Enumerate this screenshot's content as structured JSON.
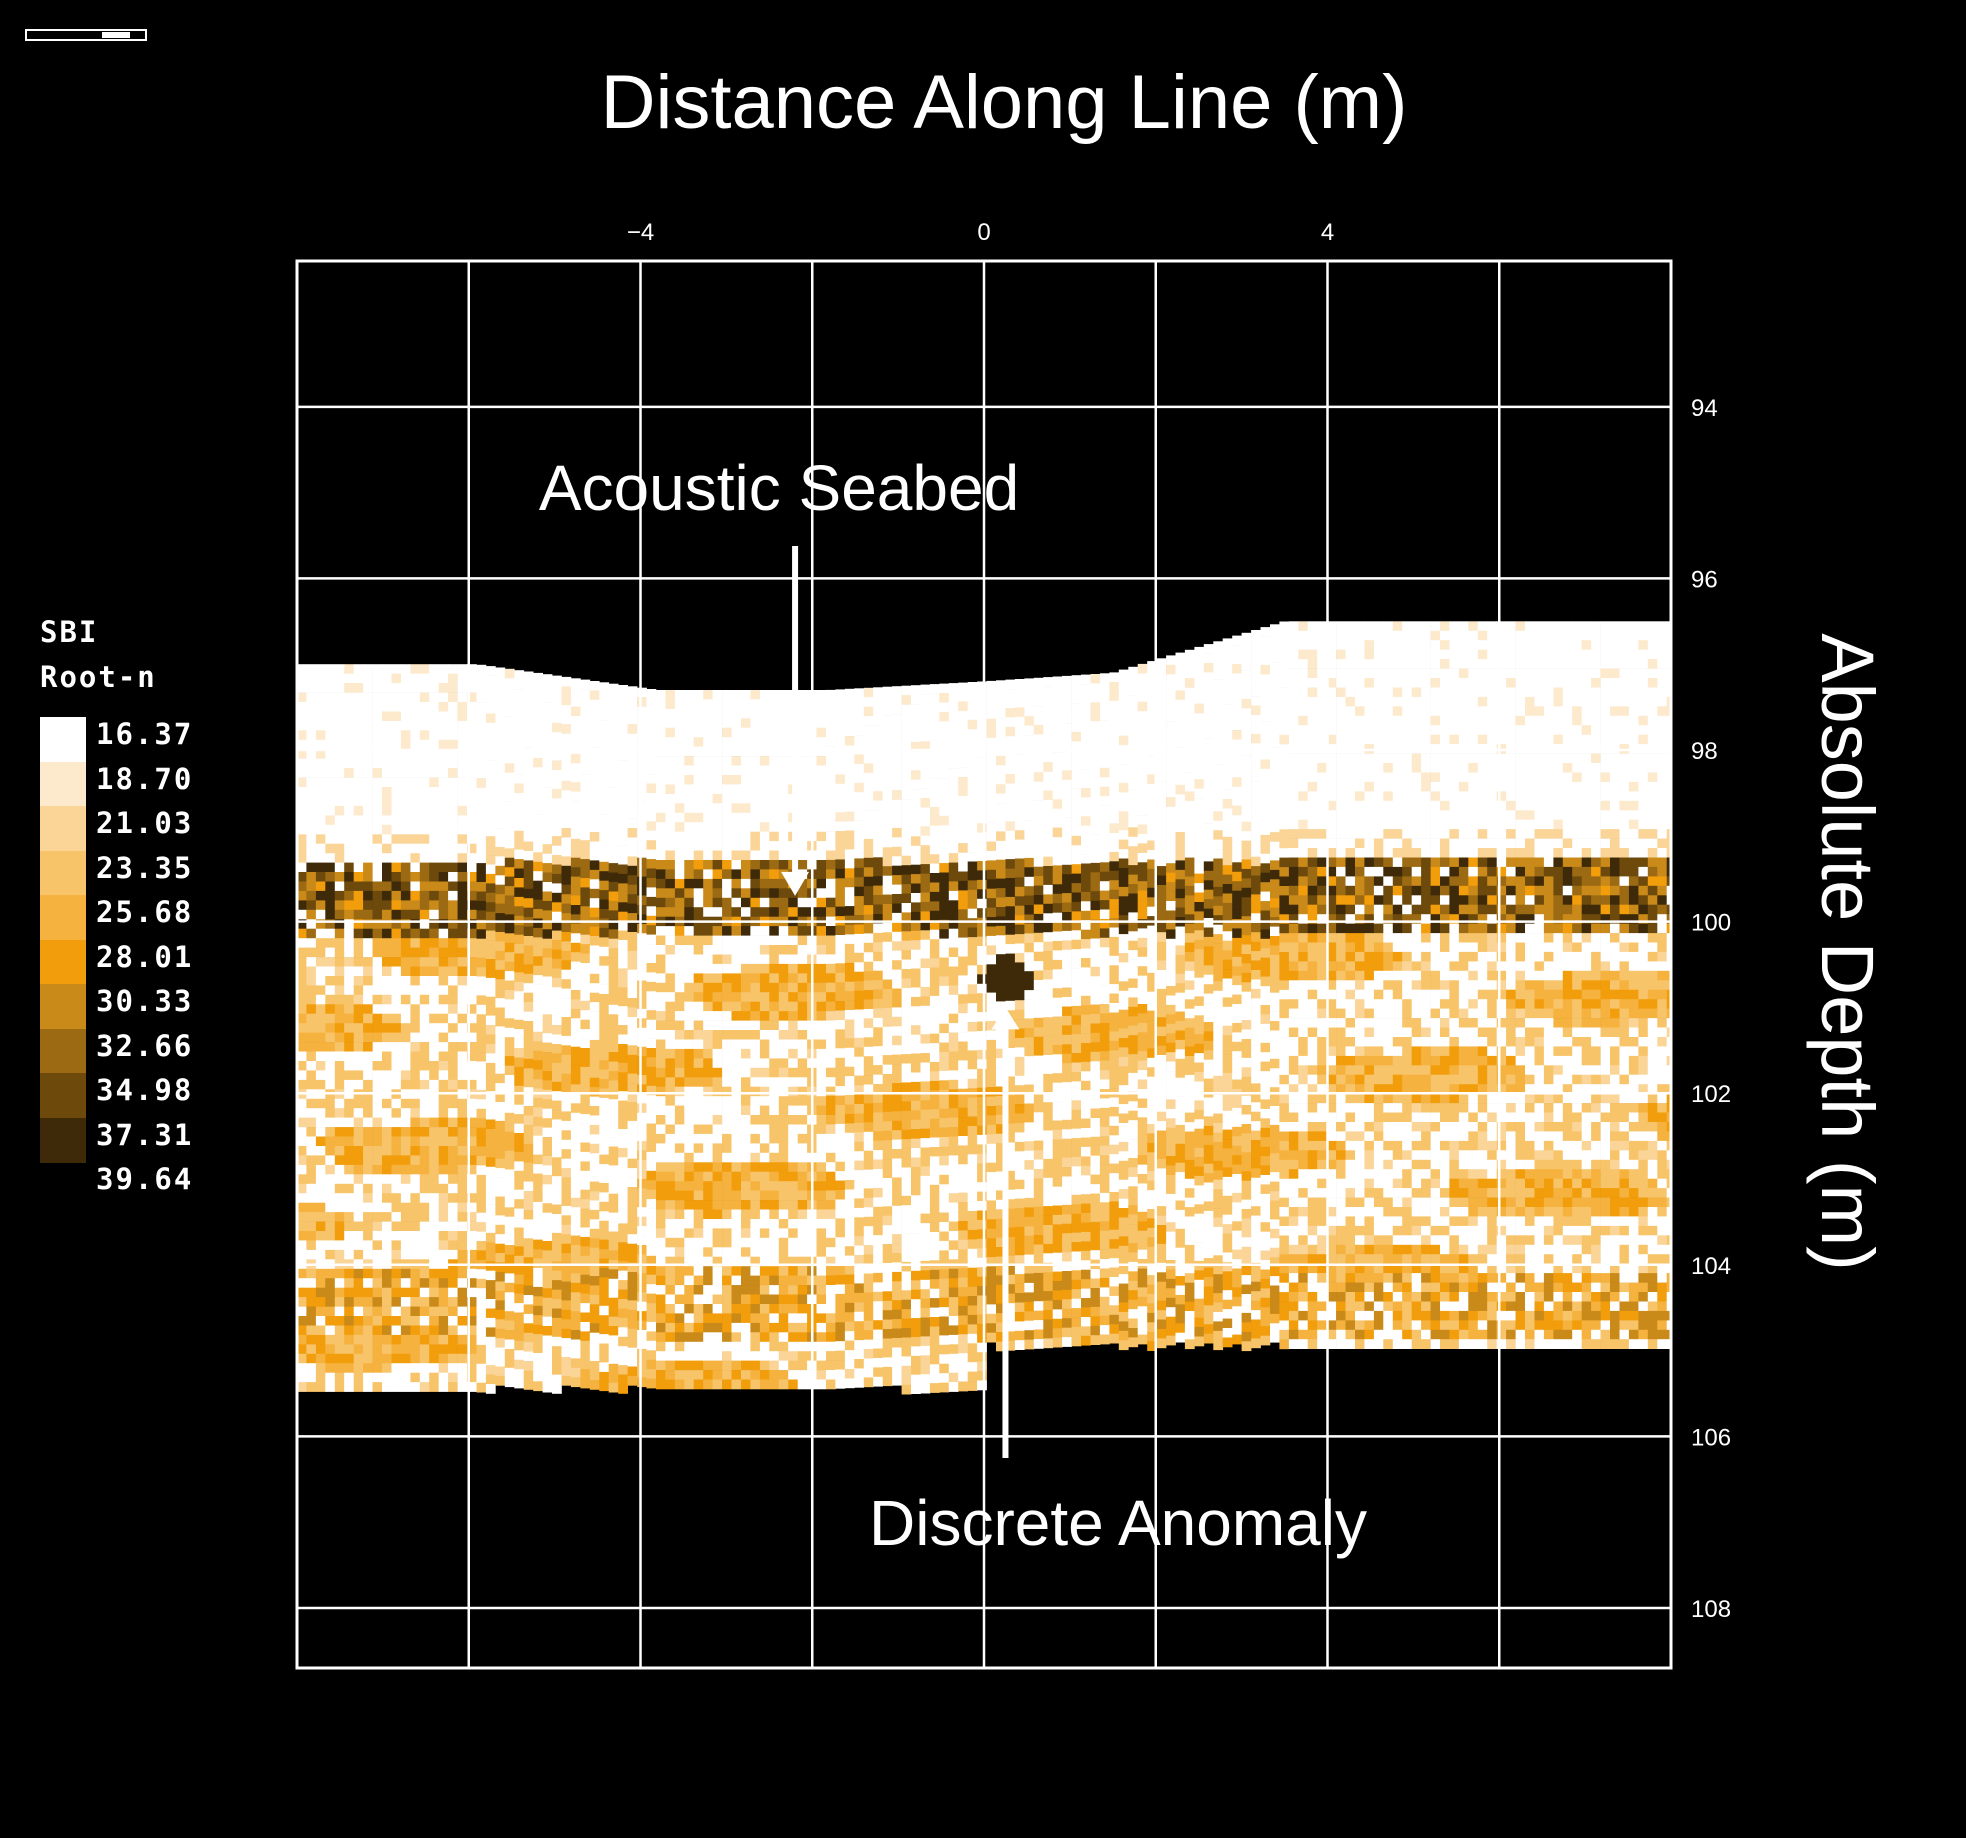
{
  "chart_data": {
    "type": "heatmap",
    "title": "Distance Along Line (m)",
    "xlabel": "Distance Along Line (m)",
    "ylabel": "Absolute Depth (m)",
    "x_ticks": [
      "−4",
      "0",
      "4"
    ],
    "y_ticks": [
      "94",
      "96",
      "98",
      "100",
      "102",
      "104",
      "106",
      "108"
    ],
    "xlim": [
      -8,
      8
    ],
    "ylim": [
      92.3,
      108.7
    ],
    "x_grid": [
      -6,
      -4,
      -2,
      0,
      2,
      4,
      6
    ],
    "y_grid": [
      94,
      96,
      98,
      100,
      102,
      104,
      106,
      108
    ],
    "grid": true,
    "legend": {
      "title": [
        "SBI",
        "Root-n"
      ],
      "placement": "left",
      "values": [
        "16.37",
        "18.70",
        "21.03",
        "23.35",
        "25.68",
        "28.01",
        "30.33",
        "32.66",
        "34.98",
        "37.31",
        "39.64"
      ],
      "colors": [
        "#ffffff",
        "#fde9cb",
        "#fbd598",
        "#f8c46a",
        "#f6b23f",
        "#f29d0b",
        "#c98a1a",
        "#9b6a12",
        "#6d4a0c",
        "#3e2a08"
      ]
    },
    "seabed_top_depth": {
      "x": [
        -8,
        -5.9,
        -3.8,
        -1.8,
        0,
        1.5,
        2.5,
        3.5,
        8
      ],
      "depth": [
        97.0,
        97.0,
        97.3,
        97.3,
        97.2,
        97.1,
        96.8,
        96.5,
        96.5
      ]
    },
    "data_bottom_depth": {
      "x": [
        -8,
        0,
        0,
        8
      ],
      "depth": [
        105.4,
        105.4,
        104.9,
        104.9
      ]
    },
    "high_intensity_band_depth": [
      99.4,
      100.1
    ],
    "deep_layer_depth": [
      104.0,
      104.8
    ],
    "anomaly": {
      "x": 0.2,
      "depth": 100.6
    },
    "annotations": [
      {
        "text": "Acoustic Seabed",
        "target_x": -2.2,
        "target_depth": 99.7,
        "arrow": "down"
      },
      {
        "text": "Discrete Anomaly",
        "target_x": 0.25,
        "target_depth": 101.0,
        "arrow": "up"
      }
    ]
  }
}
